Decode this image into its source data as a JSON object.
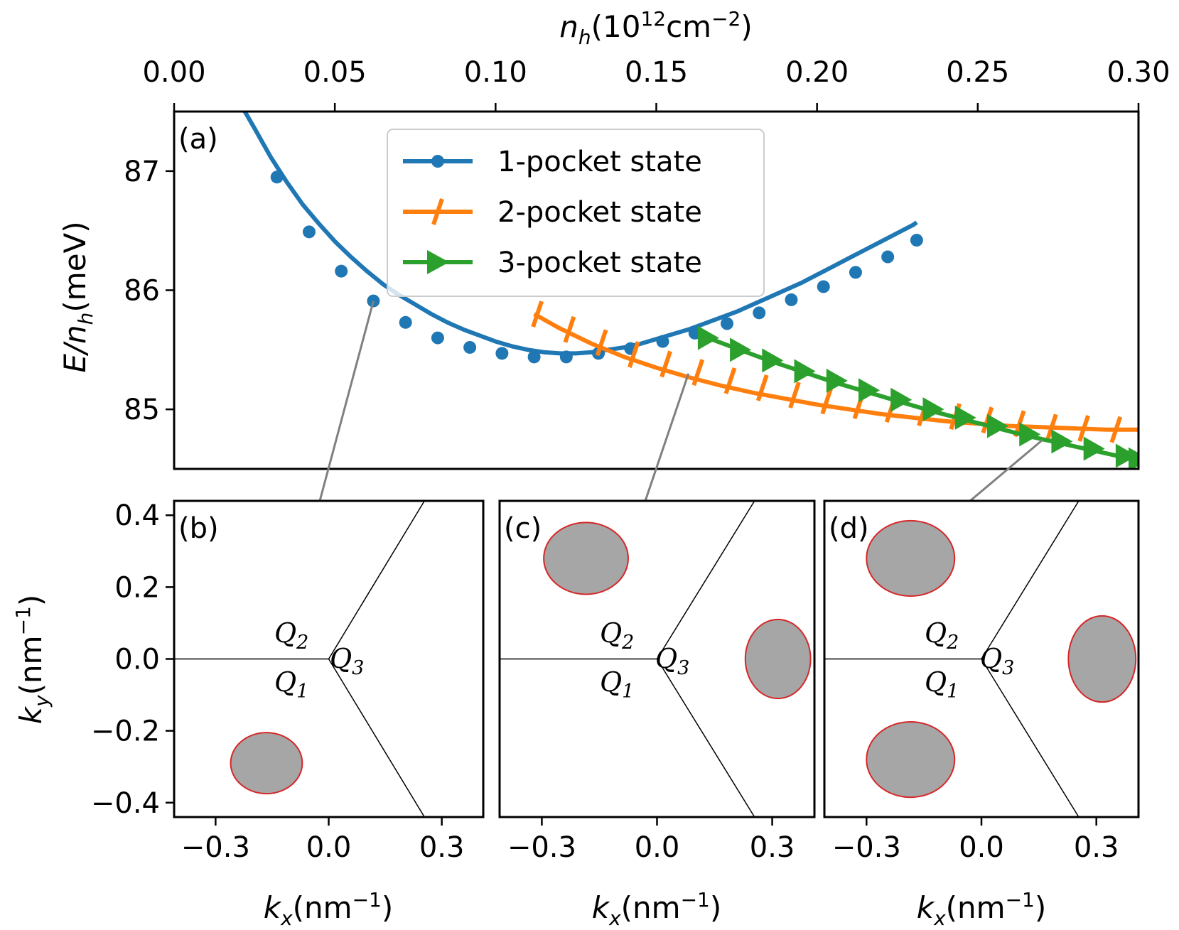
{
  "colors": {
    "one_pocket": "#1f77b4",
    "two_pocket": "#ff7f0e",
    "three_pocket": "#2ca02c",
    "pocket_fill": "#a6a6a6",
    "pocket_edge": "#d62728",
    "connector": "#808080"
  },
  "chart_data": [
    {
      "id": "a",
      "panel_label": "(a)",
      "type": "line",
      "top_axis": {
        "label_main": "n",
        "label_sub": "h",
        "label_unit_open": "(10",
        "label_unit_exp": "12",
        "label_unit_mid": "cm",
        "label_unit_exp2": "−2",
        "label_unit_close": ")",
        "range": [
          0.0,
          0.3
        ],
        "ticks": [
          0.0,
          0.05,
          0.1,
          0.15,
          0.2,
          0.25,
          0.3
        ],
        "tick_labels": [
          "0.00",
          "0.05",
          "0.10",
          "0.15",
          "0.20",
          "0.25",
          "0.30"
        ]
      },
      "y_axis": {
        "label_main": "E/n",
        "label_sub": "h",
        "label_unit": "(meV)",
        "range": [
          84.5,
          87.5
        ],
        "ticks": [
          85,
          86,
          87
        ],
        "tick_labels": [
          "85",
          "86",
          "87"
        ]
      },
      "legend": {
        "position": "upper-center",
        "entries": [
          "1-pocket state",
          "2-pocket state",
          "3-pocket state"
        ]
      },
      "series": [
        {
          "name": "1-pocket state",
          "marker": "circle",
          "curve": [
            [
              0.022,
              87.5
            ],
            [
              0.025,
              87.36
            ],
            [
              0.03,
              87.12
            ],
            [
              0.035,
              86.91
            ],
            [
              0.04,
              86.72
            ],
            [
              0.045,
              86.56
            ],
            [
              0.05,
              86.41
            ],
            [
              0.055,
              86.28
            ],
            [
              0.06,
              86.16
            ],
            [
              0.065,
              86.05
            ],
            [
              0.07,
              85.96
            ],
            [
              0.075,
              85.88
            ],
            [
              0.08,
              85.8
            ],
            [
              0.085,
              85.73
            ],
            [
              0.09,
              85.67
            ],
            [
              0.095,
              85.62
            ],
            [
              0.1,
              85.57
            ],
            [
              0.105,
              85.53
            ],
            [
              0.11,
              85.5
            ],
            [
              0.115,
              85.48
            ],
            [
              0.12,
              85.47
            ],
            [
              0.125,
              85.47
            ],
            [
              0.13,
              85.48
            ],
            [
              0.135,
              85.5
            ],
            [
              0.14,
              85.52
            ],
            [
              0.145,
              85.55
            ],
            [
              0.15,
              85.59
            ],
            [
              0.155,
              85.63
            ],
            [
              0.16,
              85.67
            ],
            [
              0.165,
              85.72
            ],
            [
              0.17,
              85.77
            ],
            [
              0.175,
              85.82
            ],
            [
              0.18,
              85.88
            ],
            [
              0.185,
              85.94
            ],
            [
              0.19,
              86.0
            ],
            [
              0.195,
              86.06
            ],
            [
              0.2,
              86.13
            ],
            [
              0.205,
              86.2
            ],
            [
              0.21,
              86.27
            ],
            [
              0.215,
              86.34
            ],
            [
              0.22,
              86.41
            ],
            [
              0.225,
              86.48
            ],
            [
              0.23,
              86.55
            ],
            [
              0.231,
              86.57
            ]
          ],
          "points": [
            [
              0.032,
              86.95
            ],
            [
              0.042,
              86.49
            ],
            [
              0.052,
              86.16
            ],
            [
              0.062,
              85.91
            ],
            [
              0.072,
              85.73
            ],
            [
              0.082,
              85.6
            ],
            [
              0.092,
              85.52
            ],
            [
              0.102,
              85.47
            ],
            [
              0.112,
              85.44
            ],
            [
              0.122,
              85.44
            ],
            [
              0.132,
              85.47
            ],
            [
              0.142,
              85.51
            ],
            [
              0.152,
              85.57
            ],
            [
              0.162,
              85.64
            ],
            [
              0.172,
              85.72
            ],
            [
              0.182,
              85.81
            ],
            [
              0.192,
              85.92
            ],
            [
              0.202,
              86.03
            ],
            [
              0.212,
              86.15
            ],
            [
              0.222,
              86.28
            ],
            [
              0.231,
              86.42
            ]
          ]
        },
        {
          "name": "2-pocket state",
          "marker": "tick",
          "curve": [
            [
              0.112,
              85.8
            ],
            [
              0.12,
              85.68
            ],
            [
              0.13,
              85.55
            ],
            [
              0.14,
              85.44
            ],
            [
              0.15,
              85.35
            ],
            [
              0.16,
              85.27
            ],
            [
              0.17,
              85.2
            ],
            [
              0.18,
              85.14
            ],
            [
              0.19,
              85.09
            ],
            [
              0.2,
              85.04
            ],
            [
              0.21,
              85.0
            ],
            [
              0.22,
              84.96
            ],
            [
              0.23,
              84.93
            ],
            [
              0.24,
              84.9
            ],
            [
              0.25,
              84.88
            ],
            [
              0.26,
              84.86
            ],
            [
              0.27,
              84.85
            ],
            [
              0.28,
              84.84
            ],
            [
              0.29,
              84.83
            ],
            [
              0.3,
              84.83
            ]
          ],
          "points": [
            [
              0.113,
              85.8
            ],
            [
              0.123,
              85.67
            ],
            [
              0.133,
              85.56
            ],
            [
              0.143,
              85.46
            ],
            [
              0.153,
              85.38
            ],
            [
              0.163,
              85.31
            ],
            [
              0.173,
              85.24
            ],
            [
              0.183,
              85.18
            ],
            [
              0.193,
              85.12
            ],
            [
              0.203,
              85.07
            ],
            [
              0.213,
              85.03
            ],
            [
              0.223,
              85.0
            ],
            [
              0.233,
              84.97
            ],
            [
              0.243,
              84.94
            ],
            [
              0.253,
              84.91
            ],
            [
              0.263,
              84.88
            ],
            [
              0.273,
              84.85
            ],
            [
              0.283,
              84.84
            ],
            [
              0.293,
              84.83
            ]
          ]
        },
        {
          "name": "3-pocket state",
          "marker": "triangle-right",
          "curve": [
            [
              0.166,
              85.6
            ],
            [
              0.175,
              85.51
            ],
            [
              0.185,
              85.41
            ],
            [
              0.195,
              85.32
            ],
            [
              0.205,
              85.23
            ],
            [
              0.215,
              85.15
            ],
            [
              0.225,
              85.07
            ],
            [
              0.235,
              84.99
            ],
            [
              0.245,
              84.92
            ],
            [
              0.255,
              84.85
            ],
            [
              0.265,
              84.78
            ],
            [
              0.275,
              84.72
            ],
            [
              0.285,
              84.66
            ],
            [
              0.295,
              84.6
            ],
            [
              0.3,
              84.57
            ]
          ],
          "points": [
            [
              0.166,
              85.6
            ],
            [
              0.176,
              85.5
            ],
            [
              0.186,
              85.41
            ],
            [
              0.196,
              85.32
            ],
            [
              0.206,
              85.24
            ],
            [
              0.216,
              85.16
            ],
            [
              0.226,
              85.08
            ],
            [
              0.236,
              85.0
            ],
            [
              0.246,
              84.93
            ],
            [
              0.256,
              84.86
            ],
            [
              0.266,
              84.79
            ],
            [
              0.276,
              84.73
            ],
            [
              0.286,
              84.67
            ],
            [
              0.296,
              84.61
            ],
            [
              0.3,
              84.58
            ]
          ]
        }
      ],
      "connectors_from": [
        [
          0.062,
          85.91
        ],
        [
          0.16,
          85.3
        ],
        [
          0.27,
          84.74
        ]
      ]
    },
    {
      "id": "b",
      "panel_label": "(b)",
      "type": "scatter",
      "xlim": [
        -0.41,
        0.41
      ],
      "ylim": [
        -0.44,
        0.44
      ],
      "x_axis": {
        "label_main": "k",
        "label_sub": "x",
        "label_unit": "(nm",
        "label_exp": "−1",
        "label_close": ")",
        "ticks": [
          -0.3,
          0.0,
          0.3
        ],
        "tick_labels": [
          "−0.3",
          "0.0",
          "0.3"
        ]
      },
      "y_axis": {
        "label_main": "k",
        "label_sub": "y",
        "label_unit": "(nm",
        "label_exp": "−1",
        "label_close": ")",
        "ticks": [
          -0.4,
          -0.2,
          0.0,
          0.2,
          0.4
        ],
        "tick_labels": [
          "−0.4",
          "−0.2",
          "0.0",
          "0.2",
          "0.4"
        ]
      },
      "region_labels": [
        {
          "base": "Q",
          "sub": "2"
        },
        {
          "base": "Q",
          "sub": "3"
        },
        {
          "base": "Q",
          "sub": "1"
        }
      ],
      "pockets": [
        {
          "cx": -0.165,
          "cy": -0.29,
          "rx": 0.095,
          "ry": 0.085
        }
      ]
    },
    {
      "id": "c",
      "panel_label": "(c)",
      "type": "scatter",
      "xlim": [
        -0.41,
        0.41
      ],
      "ylim": [
        -0.44,
        0.44
      ],
      "x_axis": {
        "label_main": "k",
        "label_sub": "x",
        "label_unit": "(nm",
        "label_exp": "−1",
        "label_close": ")",
        "ticks": [
          -0.3,
          0.0,
          0.3
        ],
        "tick_labels": [
          "−0.3",
          "0.0",
          "0.3"
        ]
      },
      "region_labels": [
        {
          "base": "Q",
          "sub": "2"
        },
        {
          "base": "Q",
          "sub": "3"
        },
        {
          "base": "Q",
          "sub": "1"
        }
      ],
      "pockets": [
        {
          "cx": -0.185,
          "cy": 0.28,
          "rx": 0.11,
          "ry": 0.1
        },
        {
          "cx": 0.315,
          "cy": 0.0,
          "rx": 0.085,
          "ry": 0.11
        }
      ]
    },
    {
      "id": "d",
      "panel_label": "(d)",
      "type": "scatter",
      "xlim": [
        -0.41,
        0.41
      ],
      "ylim": [
        -0.44,
        0.44
      ],
      "x_axis": {
        "label_main": "k",
        "label_sub": "x",
        "label_unit": "(nm",
        "label_exp": "−1",
        "label_close": ")",
        "ticks": [
          -0.3,
          0.0,
          0.3
        ],
        "tick_labels": [
          "−0.3",
          "0.0",
          "0.3"
        ]
      },
      "region_labels": [
        {
          "base": "Q",
          "sub": "2"
        },
        {
          "base": "Q",
          "sub": "3"
        },
        {
          "base": "Q",
          "sub": "1"
        }
      ],
      "pockets": [
        {
          "cx": -0.185,
          "cy": 0.28,
          "rx": 0.115,
          "ry": 0.105
        },
        {
          "cx": 0.315,
          "cy": 0.0,
          "rx": 0.088,
          "ry": 0.12
        },
        {
          "cx": -0.185,
          "cy": -0.28,
          "rx": 0.115,
          "ry": 0.105
        }
      ]
    }
  ]
}
